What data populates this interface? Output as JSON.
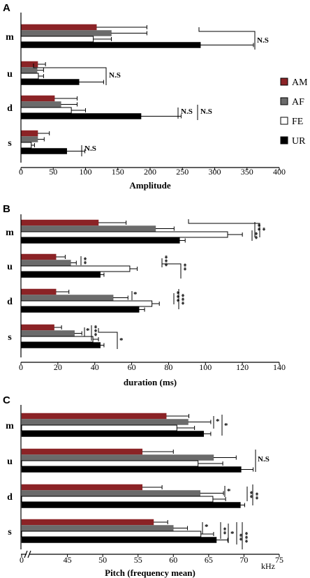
{
  "legend": [
    {
      "key": "AM",
      "label": "AM",
      "color": "#8b2326"
    },
    {
      "key": "AF",
      "label": "AF",
      "color": "#6b6b6b"
    },
    {
      "key": "FE",
      "label": "FE",
      "color": "#ffffff"
    },
    {
      "key": "UR",
      "label": "UR",
      "color": "#000000"
    }
  ],
  "chart_data": [
    {
      "panel": "A",
      "type": "bar",
      "orientation": "horizontal",
      "categories": [
        "m",
        "u",
        "d",
        "s"
      ],
      "series": [
        {
          "name": "AM",
          "values": [
            117,
            26,
            52,
            26
          ],
          "errors": [
            78,
            12,
            35,
            18
          ]
        },
        {
          "name": "AF",
          "values": [
            140,
            25,
            62,
            26
          ],
          "errors": [
            55,
            10,
            25,
            10
          ]
        },
        {
          "name": "FE",
          "values": [
            112,
            27,
            78,
            16
          ],
          "errors": [
            28,
            8,
            22,
            5
          ]
        },
        {
          "name": "UR",
          "values": [
            278,
            90,
            186,
            71
          ],
          "errors": [
            82,
            38,
            62,
            28
          ]
        }
      ],
      "xlabel": "Amplitude",
      "xlim": [
        0,
        400
      ],
      "xticks": [
        0,
        50,
        100,
        150,
        200,
        250,
        300,
        350,
        400
      ],
      "significance": [
        "N.S",
        "N.S",
        "N.S",
        "N.S",
        "N.S"
      ]
    },
    {
      "panel": "B",
      "type": "bar",
      "orientation": "horizontal",
      "categories": [
        "m",
        "u",
        "d",
        "s"
      ],
      "series": [
        {
          "name": "AM",
          "values": [
            42,
            19,
            19,
            18
          ],
          "errors": [
            15,
            5,
            7,
            4
          ]
        },
        {
          "name": "AF",
          "values": [
            73,
            27,
            50,
            29
          ],
          "errors": [
            10,
            3,
            8,
            4
          ]
        },
        {
          "name": "FE",
          "values": [
            112,
            59,
            71,
            39
          ],
          "errors": [
            8,
            4,
            4,
            3
          ]
        },
        {
          "name": "UR",
          "values": [
            86,
            43,
            64,
            43
          ],
          "errors": [
            3,
            2,
            3,
            2
          ]
        }
      ],
      "xlabel": "duration (ms)",
      "xlim": [
        0,
        140
      ],
      "xticks": [
        0,
        20,
        40,
        60,
        80,
        100,
        120,
        140
      ],
      "significance": [
        "**",
        "*",
        "**",
        "**",
        "***",
        "**",
        "*",
        "***",
        "***",
        "*",
        "***",
        "*"
      ]
    },
    {
      "panel": "C",
      "type": "bar",
      "orientation": "horizontal",
      "categories": [
        "m",
        "u",
        "d",
        "s"
      ],
      "series": [
        {
          "name": "AM",
          "values": [
            59,
            55.6,
            55.6,
            57.2
          ],
          "errors": [
            3.2,
            4.4,
            2.8,
            2.0
          ]
        },
        {
          "name": "AF",
          "values": [
            62.1,
            65.7,
            63.8,
            60.0
          ],
          "errors": [
            3.2,
            3.2,
            3.3,
            2.0
          ]
        },
        {
          "name": "FE",
          "values": [
            60.5,
            63.5,
            65.6,
            63.9
          ],
          "errors": [
            2.5,
            3.5,
            1.8,
            1.8
          ]
        },
        {
          "name": "UR",
          "values": [
            64.3,
            69.6,
            69.5,
            66.1
          ],
          "errors": [
            1.0,
            1.7,
            0.6,
            1.6
          ]
        }
      ],
      "xlabel": "Pitch (frequency mean)",
      "unit_label": "kHz",
      "xlim": [
        40,
        75
      ],
      "axis_break": true,
      "xticks": [
        45,
        50,
        55,
        60,
        65,
        70,
        75
      ],
      "xtick_zero": "0",
      "significance": [
        "*",
        "*",
        "N.S",
        "*",
        "**",
        "**",
        "*",
        "**",
        "*",
        "**",
        "***"
      ]
    }
  ]
}
